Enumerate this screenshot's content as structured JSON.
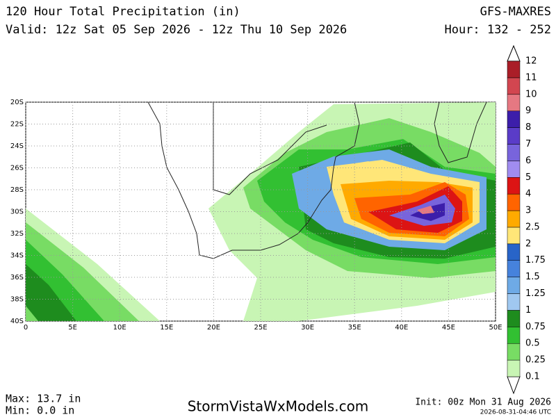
{
  "header": {
    "title": "120 Hour Total Precipitation (in)",
    "model": "GFS-MAXRES",
    "valid": "Valid: 12z Sat 05 Sep 2026 - 12z Thu 10 Sep 2026",
    "hour": "Hour: 132 - 252"
  },
  "map": {
    "lat_labels": [
      "20S",
      "22S",
      "24S",
      "26S",
      "28S",
      "30S",
      "32S",
      "34S",
      "36S",
      "38S",
      "40S"
    ],
    "lon_labels": [
      "0",
      "5E",
      "10E",
      "15E",
      "20E",
      "25E",
      "30E",
      "35E",
      "40E",
      "45E",
      "50E"
    ]
  },
  "colorbar": {
    "labels": [
      "0.1",
      "0.25",
      "0.5",
      "0.75",
      "1",
      "1.25",
      "1.5",
      "1.75",
      "2",
      "2.5",
      "3",
      "4",
      "5",
      "6",
      "7",
      "8",
      "9",
      "10",
      "11",
      "12"
    ],
    "colors": [
      "#c8f5b4",
      "#78dc64",
      "#32c032",
      "#1e8c1e",
      "#a0c8f0",
      "#6eaae6",
      "#4682dc",
      "#2864c8",
      "#ffe678",
      "#ffaa00",
      "#ff6400",
      "#dc1414",
      "#a08cf0",
      "#7864dc",
      "#5a3cc8",
      "#3c1eaa",
      "#e67882",
      "#d24650",
      "#aa1e28"
    ]
  },
  "footer": {
    "max": "Max: 13.7 in",
    "min": "Min: 0.0 in",
    "site": "StormVistaWxModels.com",
    "init": "Init: 00z Mon 31 Aug 2026",
    "stamp": "2026-08-31-04:46 UTC"
  }
}
